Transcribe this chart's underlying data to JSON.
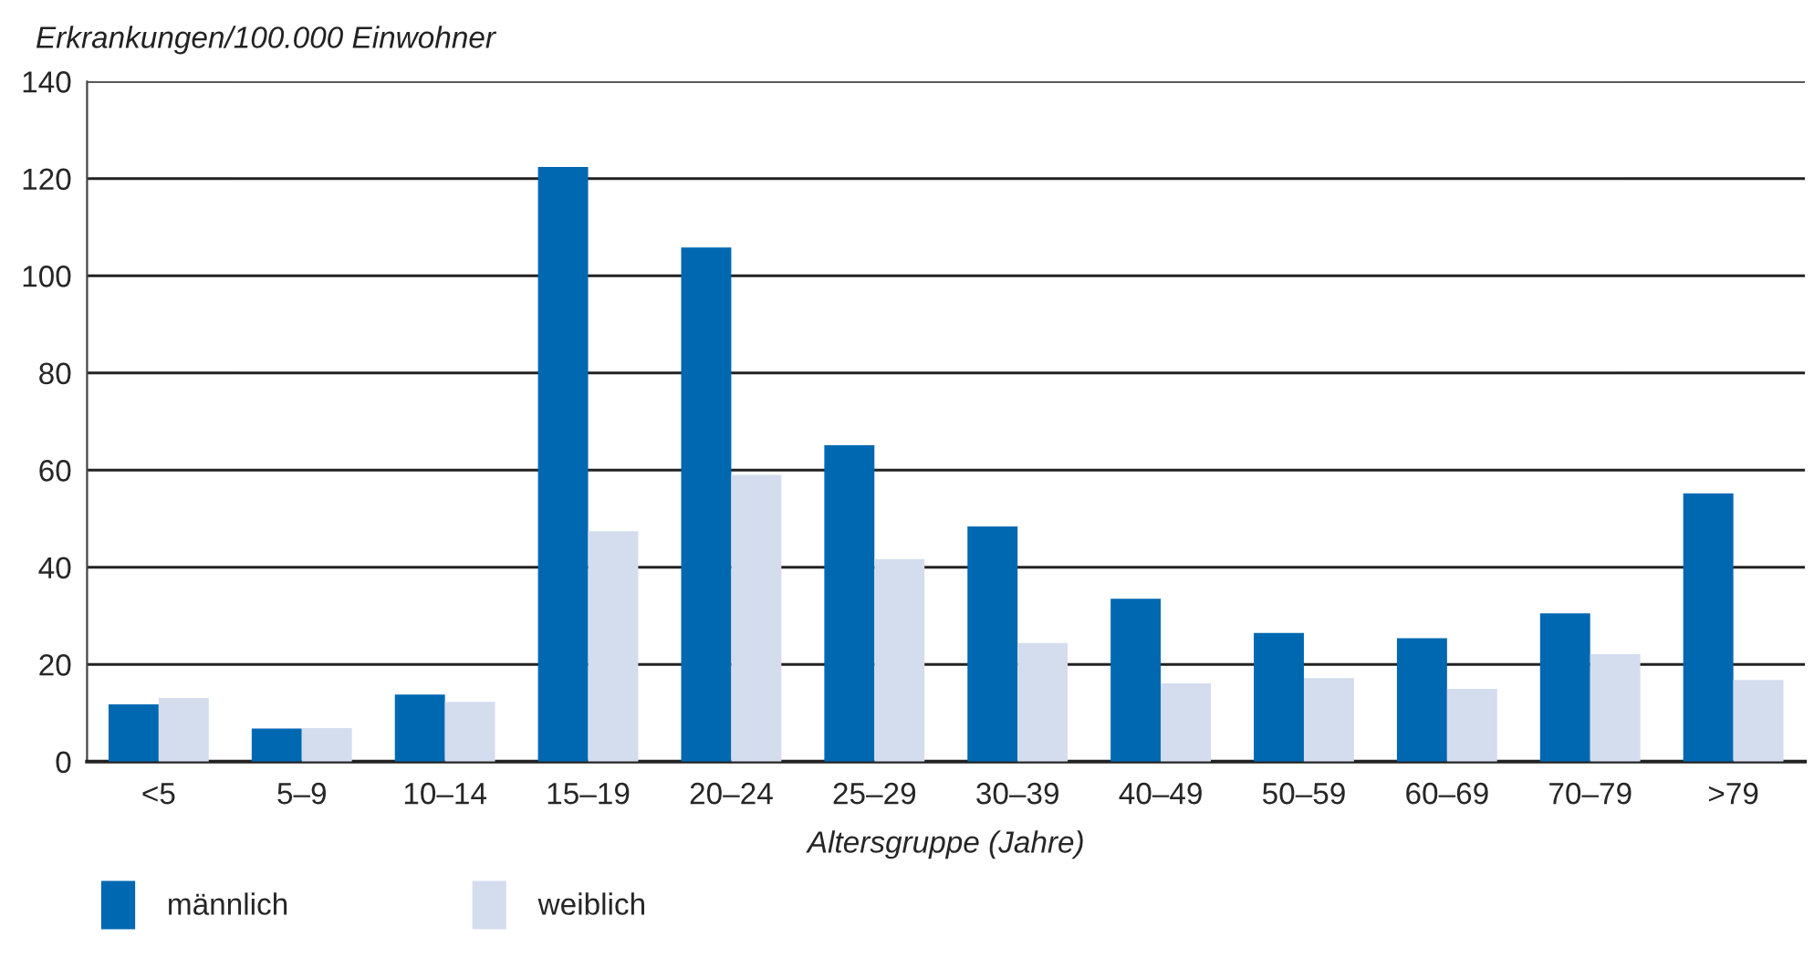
{
  "chart_data": {
    "type": "bar",
    "ylabel": "Erkrankungen/100.000 Einwohner",
    "xlabel": "Altersgruppe (Jahre)",
    "categories": [
      "<5",
      "5–9",
      "10–14",
      "15–19",
      "20–24",
      "25–29",
      "30–39",
      "40–49",
      "50–59",
      "60–69",
      "70–79",
      ">79"
    ],
    "series": [
      {
        "name": "männlich",
        "color": "#0068b1",
        "values": [
          11.8,
          6.8,
          13.8,
          122.4,
          105.8,
          65.1,
          48.4,
          33.5,
          26.5,
          25.4,
          30.5,
          55.2
        ]
      },
      {
        "name": "weiblich",
        "color": "#d4ddee",
        "values": [
          13.1,
          6.9,
          12.3,
          47.4,
          59.0,
          41.7,
          24.4,
          16.1,
          17.2,
          15.0,
          22.1,
          16.8
        ]
      }
    ],
    "ylim": [
      0,
      140
    ],
    "yticks": [
      0,
      20,
      40,
      60,
      80,
      100,
      120,
      140
    ],
    "grid": "y",
    "legend": "bottom left"
  }
}
